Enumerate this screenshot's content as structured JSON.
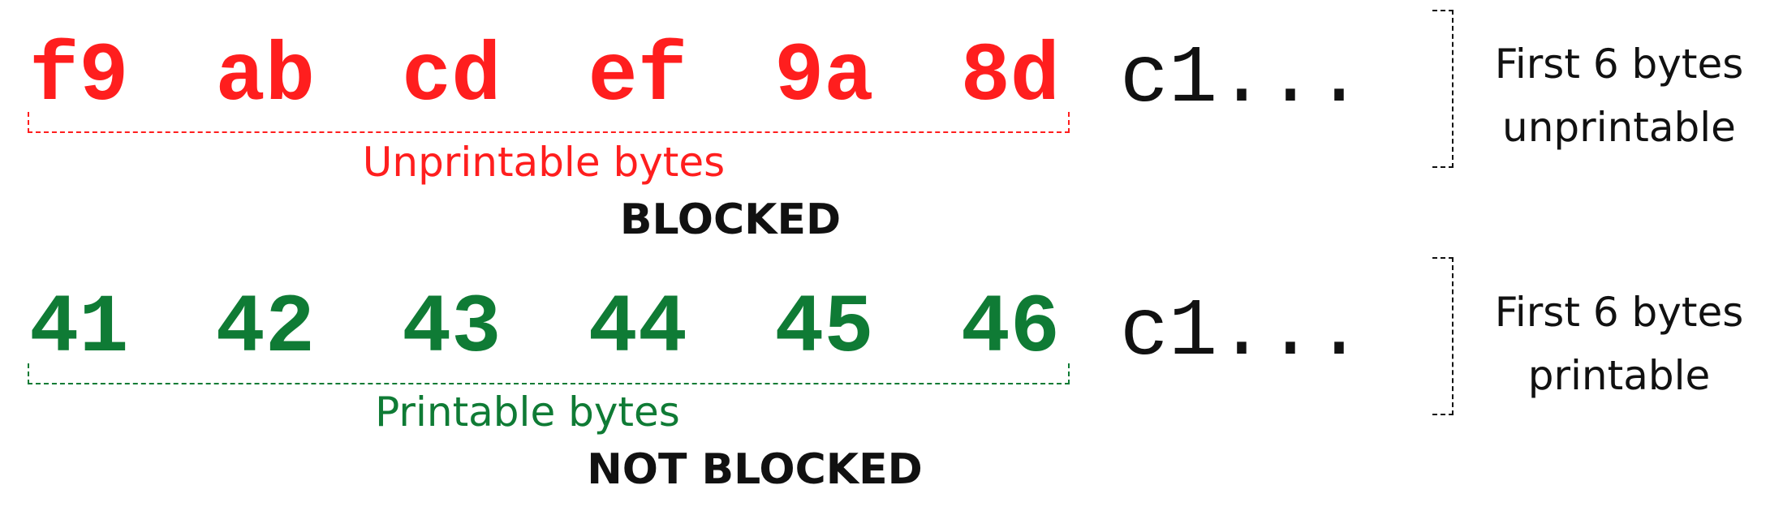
{
  "colors": {
    "blocked": "#ff1e1e",
    "allowed": "#0f7b35",
    "text": "#111111",
    "background": "#ffffff"
  },
  "rows": [
    {
      "bytes": [
        "f9",
        "ab",
        "cd",
        "ef",
        "9a",
        "8d"
      ],
      "tail": "c1...",
      "caption": "Unprintable bytes",
      "status": "BLOCKED",
      "note": [
        "First 6 bytes",
        "unprintable"
      ]
    },
    {
      "bytes": [
        "41",
        "42",
        "43",
        "44",
        "45",
        "46"
      ],
      "tail": "c1...",
      "caption": "Printable bytes",
      "status": "NOT BLOCKED",
      "note": [
        "First 6 bytes",
        "printable"
      ]
    }
  ]
}
